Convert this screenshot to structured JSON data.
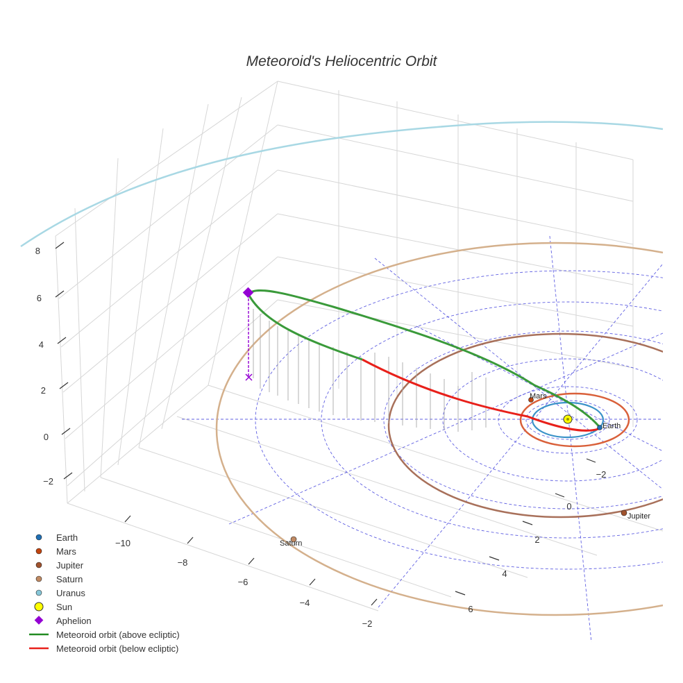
{
  "chart_data": {
    "type": "3d-line",
    "title": "Meteoroid's Heliocentric Orbit",
    "axes": {
      "x_ticks": [
        "−10",
        "−8",
        "−6",
        "−4",
        "−2"
      ],
      "y_ticks": [
        "−2",
        "0",
        "2",
        "4",
        "6"
      ],
      "z_ticks": [
        "8",
        "6",
        "4",
        "2",
        "0",
        "−2"
      ]
    },
    "planet_labels": [
      "Mars",
      "Earth",
      "Jupiter",
      "Saturn"
    ],
    "legend": [
      {
        "label": "Earth",
        "symbol": "dot",
        "color": "#1f6fb4"
      },
      {
        "label": "Mars",
        "symbol": "dot",
        "color": "#c1440e"
      },
      {
        "label": "Jupiter",
        "symbol": "dot",
        "color": "#a0522d"
      },
      {
        "label": "Saturn",
        "symbol": "dot",
        "color": "#c08a63"
      },
      {
        "label": "Uranus",
        "symbol": "dot",
        "color": "#87c7d9"
      },
      {
        "label": "Sun",
        "symbol": "sun",
        "color": "#ffff00"
      },
      {
        "label": "Aphelion",
        "symbol": "diamond",
        "color": "#9400d3"
      },
      {
        "label": "Meteoroid orbit (above ecliptic)",
        "symbol": "line",
        "color": "#228b22"
      },
      {
        "label": "Meteoroid orbit (below ecliptic)",
        "symbol": "line",
        "color": "#e8201a"
      }
    ],
    "colors": {
      "earth_orbit": "#3a92c8",
      "mars_orbit": "#d9603a",
      "jupiter_orbit": "#a8705a",
      "saturn_orbit": "#d4b08c",
      "uranus_orbit": "#a8d8e4",
      "ecliptic_grid": "#4444dd",
      "aphelion": "#9400d3",
      "orbit_above": "#228b22",
      "orbit_below": "#e8201a",
      "box_grid": "#d6d6d6"
    }
  }
}
